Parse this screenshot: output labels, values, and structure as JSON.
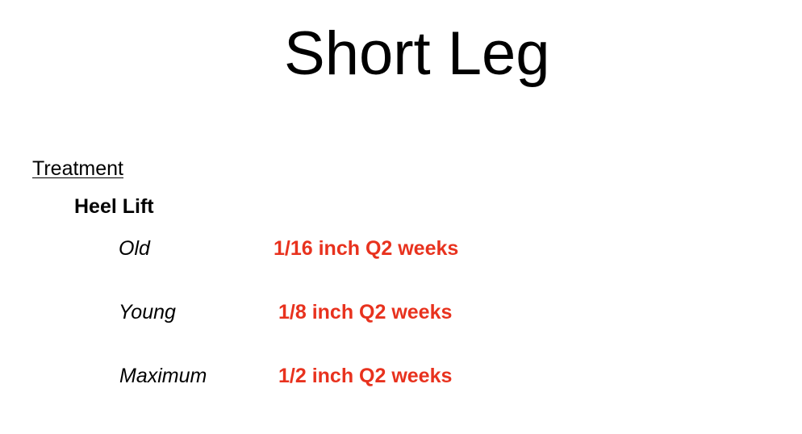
{
  "title": "Short Leg",
  "section": {
    "heading": "Treatment",
    "subheading": "Heel Lift"
  },
  "rows": [
    {
      "label": "Old",
      "value": "1/16 inch Q2 weeks"
    },
    {
      "label": "Young",
      "value": "1/8 inch Q2 weeks"
    },
    {
      "label": "Maximum",
      "value": "1/2 inch Q2 weeks"
    }
  ],
  "colors": {
    "text": "#000000",
    "accent": "#e8321e",
    "background": "#ffffff"
  }
}
